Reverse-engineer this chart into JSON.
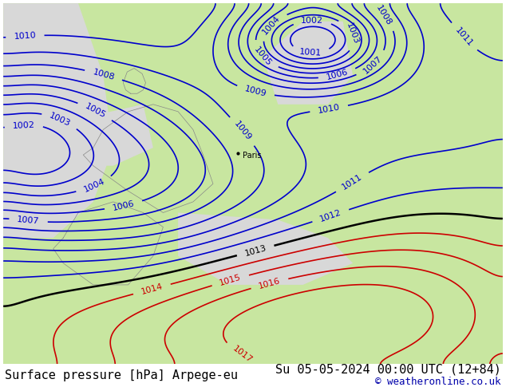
{
  "title_left": "Surface pressure [hPa] Arpege-eu",
  "title_right": "Su 05-05-2024 00:00 UTC (12+84)",
  "credit": "© weatheronline.co.uk",
  "title_fontsize": 11,
  "credit_fontsize": 9,
  "bg_color": "#ffffff",
  "map_bg_land": "#c8e6a0",
  "map_bg_sea": "#d8d8d8",
  "blue_color": "#0000cc",
  "red_color": "#cc0000",
  "black_color": "#000000",
  "contour_linewidth": 1.2,
  "label_fontsize": 8
}
